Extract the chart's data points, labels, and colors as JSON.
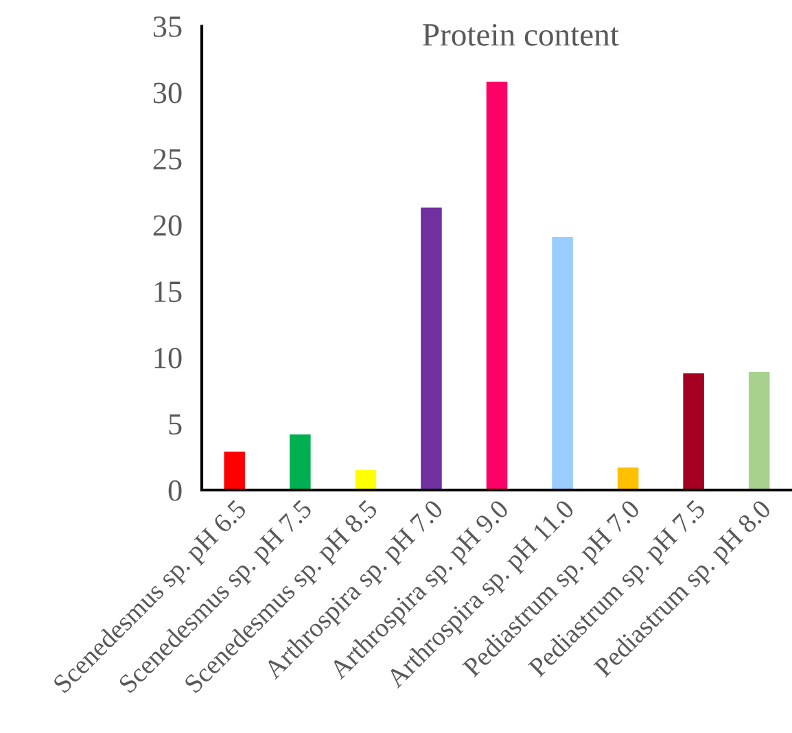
{
  "chart_data": {
    "type": "bar",
    "title": "Protein content",
    "categories": [
      "Scenedesmus sp. pH 6.5",
      "Scenedesmus sp. pH 7.5",
      "Scenedesmus sp. pH 8.5",
      "Arthrospira sp. pH 7.0",
      "Arthrospira sp. pH 9.0",
      "Arthrospira sp. pH 11.0",
      "Pediastrum sp. pH 7.0",
      "Pediastrum sp. pH 7.5",
      "Pediastrum sp. pH 8.0"
    ],
    "values": [
      2.9,
      4.2,
      1.5,
      21.3,
      30.8,
      19.1,
      1.7,
      8.8,
      8.9
    ],
    "colors": [
      "#ff0000",
      "#00b050",
      "#ffff00",
      "#7030a0",
      "#ff0066",
      "#99ccff",
      "#ffc000",
      "#a50021",
      "#a9d18e"
    ],
    "ylim": [
      0,
      35
    ],
    "yticks": [
      0,
      5,
      10,
      15,
      20,
      25,
      30,
      35
    ],
    "grid": false,
    "legend": false
  }
}
